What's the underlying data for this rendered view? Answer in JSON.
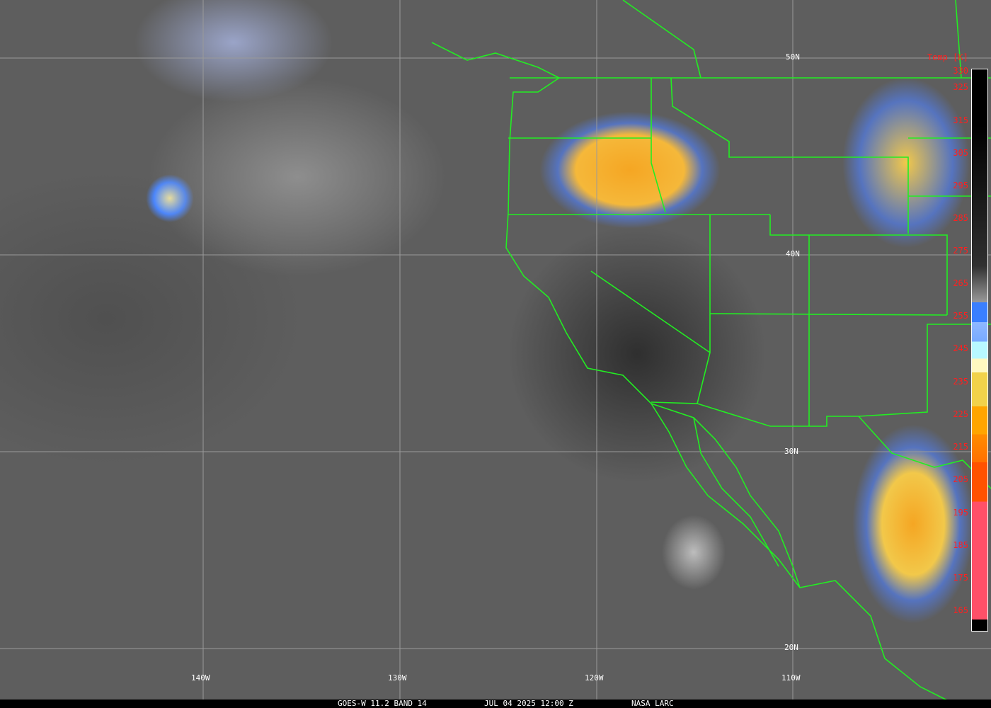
{
  "colorbar": {
    "title": "Temp [K]",
    "ticks": [
      "330",
      "325",
      "315",
      "305",
      "295",
      "285",
      "275",
      "265",
      "255",
      "245",
      "235",
      "225",
      "215",
      "205",
      "195",
      "185",
      "175",
      "165"
    ]
  },
  "grid": {
    "longitudes": [
      "140W",
      "130W",
      "120W",
      "110W"
    ],
    "latitudes": [
      "50N",
      "40N",
      "30N",
      "20N"
    ]
  },
  "footer": {
    "satellite": "GOES-W 11.2 BAND 14",
    "datetime": "JUL 04 2025 12:00 Z",
    "source": "NASA LARC"
  },
  "colors": {
    "borders": "#22ee22",
    "grid": "#9a9a9a",
    "tick_text": "#ff2020"
  }
}
